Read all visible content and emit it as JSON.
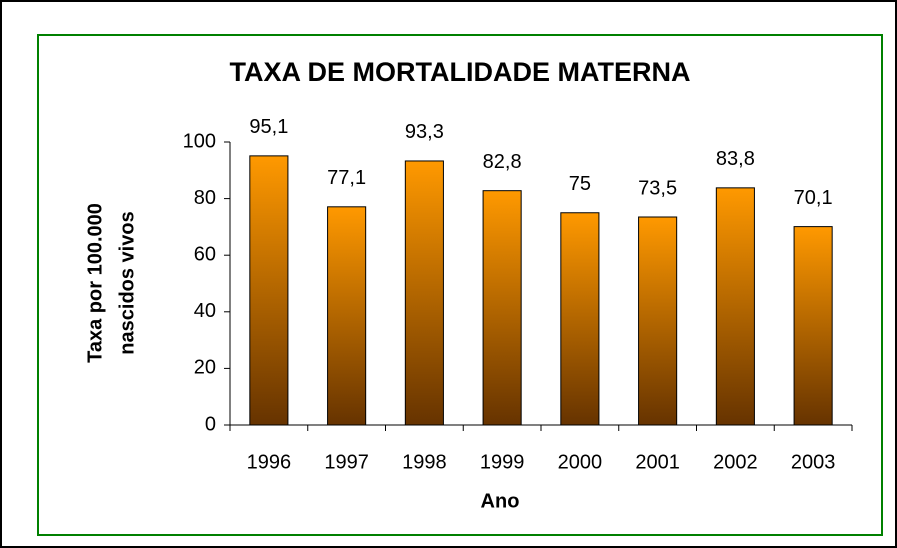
{
  "chart_data": {
    "type": "bar",
    "title": "TAXA DE MORTALIDADE MATERNA",
    "categories": [
      "1996",
      "1997",
      "1998",
      "1999",
      "2000",
      "2001",
      "2002",
      "2003"
    ],
    "values": [
      95.1,
      77.1,
      93.3,
      82.8,
      75,
      73.5,
      83.8,
      70.1
    ],
    "value_labels": [
      "95,1",
      "77,1",
      "93,3",
      "82,8",
      "75",
      "73,5",
      "83,8",
      "70,1"
    ],
    "color": "#ff9900",
    "x_label": "Ano",
    "y_label": [
      "Taxa por 100.000",
      "nascidos vivos"
    ],
    "ylim": [
      0,
      100
    ],
    "yticks": [
      0,
      20,
      40,
      60,
      80,
      100
    ],
    "grid": false
  }
}
